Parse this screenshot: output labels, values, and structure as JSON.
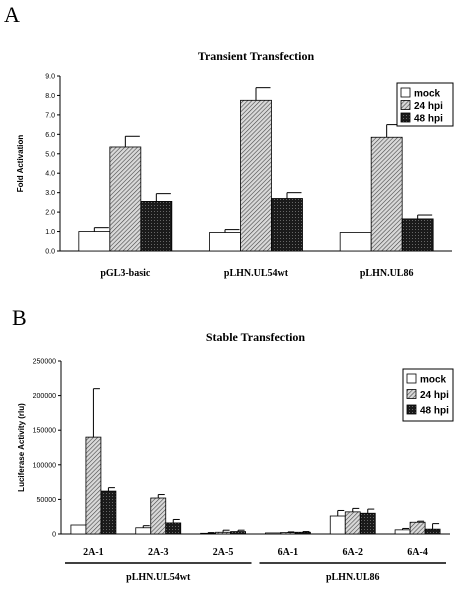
{
  "chart_data": [
    {
      "panel": "A",
      "type": "bar",
      "title": "Transient Transfection",
      "ylabel": "Fold Activation",
      "xlabel": "",
      "ylim": [
        0,
        9
      ],
      "yticks": [
        "0.0",
        "1.0",
        "2.0",
        "3.0",
        "4.0",
        "5.0",
        "6.0",
        "7.0",
        "8.0",
        "9.0"
      ],
      "categories": [
        "pGL3-basic",
        "pLHN.UL54wt",
        "pLHN.UL86"
      ],
      "series": [
        {
          "name": "mock",
          "values": [
            1.0,
            0.95,
            0.95
          ],
          "errors": [
            0.2,
            0.15,
            0.0
          ],
          "fill": "white"
        },
        {
          "name": "24 hpi",
          "values": [
            5.35,
            7.75,
            5.85
          ],
          "errors": [
            0.55,
            0.65,
            0.65
          ],
          "fill": "hatch"
        },
        {
          "name": "48 hpi",
          "values": [
            2.55,
            2.7,
            1.65
          ],
          "errors": [
            0.4,
            0.3,
            0.2
          ],
          "fill": "dark"
        }
      ],
      "legend": "top-right",
      "grid": false
    },
    {
      "panel": "B",
      "type": "bar",
      "title": "Stable Transfection",
      "ylabel": "Luciferase Activity (rlu)",
      "xlabel": "",
      "ylim": [
        0,
        250000
      ],
      "yticks": [
        "0",
        "50000",
        "100000",
        "150000",
        "200000",
        "250000"
      ],
      "categories": [
        "2A-1",
        "2A-3",
        "2A-5",
        "6A-1",
        "6A-2",
        "6A-4"
      ],
      "groups": [
        {
          "label": "pLHN.UL54wt",
          "categories": [
            "2A-1",
            "2A-3",
            "2A-5"
          ]
        },
        {
          "label": "pLHN.UL86",
          "categories": [
            "6A-1",
            "6A-2",
            "6A-4"
          ]
        }
      ],
      "series": [
        {
          "name": "mock",
          "values": [
            13000,
            9000,
            1000,
            1500,
            26000,
            6000
          ],
          "errors": [
            0,
            3000,
            1000,
            0,
            8000,
            2000
          ],
          "fill": "white"
        },
        {
          "name": "24 hpi",
          "values": [
            140000,
            52000,
            2500,
            2000,
            32000,
            17000
          ],
          "errors": [
            70000,
            5000,
            3000,
            1000,
            5000,
            1500
          ],
          "fill": "hatch"
        },
        {
          "name": "48 hpi",
          "values": [
            62000,
            16000,
            3500,
            2500,
            30000,
            7000
          ],
          "errors": [
            5000,
            5000,
            2000,
            1000,
            6000,
            8000
          ],
          "fill": "dark"
        }
      ],
      "legend": "top-right",
      "grid": false
    }
  ]
}
